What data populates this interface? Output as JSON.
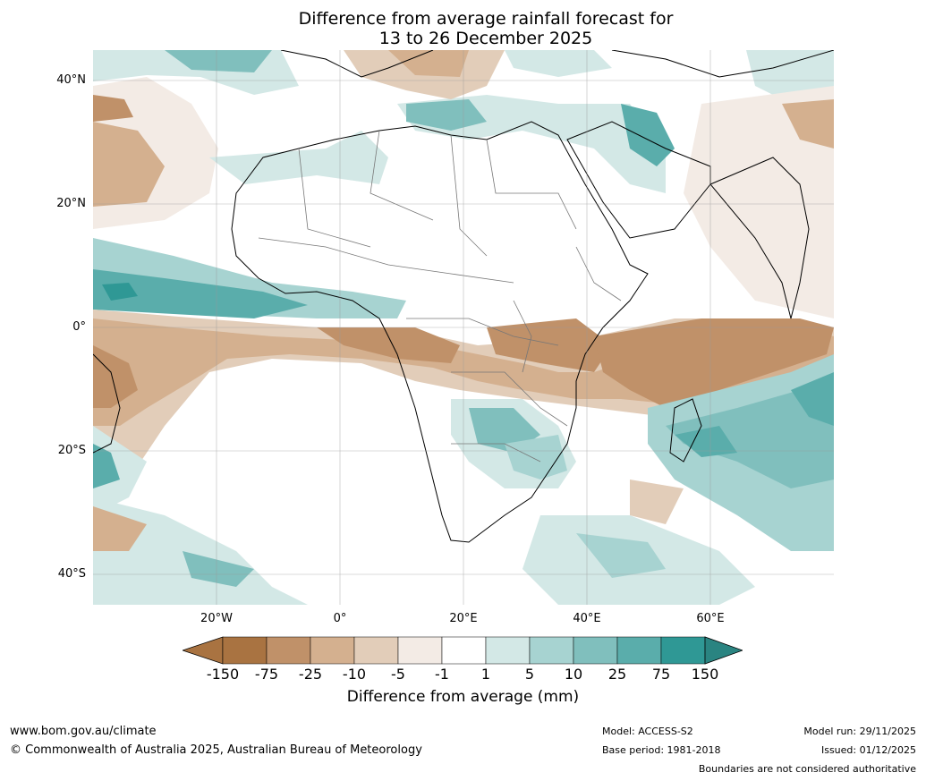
{
  "title": {
    "line1": "Difference from average rainfall forecast for",
    "line2": "13 to 26 December 2025"
  },
  "axes": {
    "lat_labels": [
      "40°N",
      "20°N",
      "0°",
      "20°S",
      "40°S"
    ],
    "lon_labels": [
      "20°W",
      "0°",
      "20°E",
      "40°E",
      "60°E"
    ]
  },
  "legend": {
    "ticks": [
      "-150",
      "-75",
      "-25",
      "-10",
      "-5",
      "-1",
      "1",
      "5",
      "10",
      "25",
      "75",
      "150"
    ],
    "label": "Difference from average (mm)",
    "colors": [
      "#a97341",
      "#a97341",
      "#c09169",
      "#d4b08f",
      "#e2cdb9",
      "#f3ebe5",
      "#ffffff",
      "#d3e8e6",
      "#a7d3d1",
      "#80bfbd",
      "#5aadab",
      "#2f9895",
      "#2a8481"
    ]
  },
  "footer": {
    "website": "www.bom.gov.au/climate",
    "copyright": "© Commonwealth of Australia 2025, Australian Bureau of Meteorology",
    "model": "Model: ACCESS-S2",
    "base_period": "Base period: 1981-2018",
    "model_run": "Model run: 29/11/2025",
    "issued": "Issued: 01/12/2025",
    "disclaimer": "Boundaries are not considered authoritative"
  }
}
